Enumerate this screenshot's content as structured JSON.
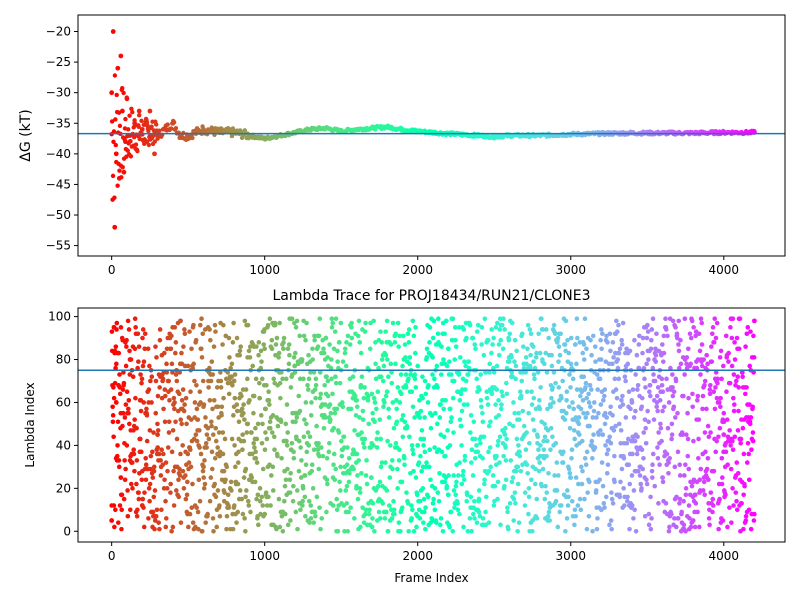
{
  "chart_data": [
    {
      "type": "scatter",
      "title": "",
      "xlabel": "",
      "ylabel": "ΔG (kT)",
      "xlim": [
        -220,
        4400
      ],
      "ylim": [
        -56.7,
        -17.3
      ],
      "x_ticks": [
        0,
        1000,
        2000,
        3000,
        4000
      ],
      "y_ticks": [
        -55,
        -50,
        -45,
        -40,
        -35,
        -30,
        -25,
        -20
      ],
      "hline": -36.7,
      "grid": false,
      "colormap": "rainbow (frame index)",
      "series": [
        {
          "x": [
            0,
            10,
            20,
            30,
            40,
            50,
            60,
            70,
            80,
            90,
            100,
            120,
            150,
            180,
            200,
            230,
            250,
            280,
            300,
            350,
            400,
            450,
            500,
            600,
            700,
            800,
            900,
            1000,
            1100,
            1200,
            1300,
            1400,
            1500,
            1600,
            1700,
            1800,
            1900,
            2000,
            2200,
            2400,
            2500,
            2600,
            2800,
            3000,
            3200,
            3400,
            3600,
            3800,
            4000,
            4200
          ],
          "y": [
            -30,
            -20,
            -52,
            -40,
            -26,
            -44,
            -24,
            -33,
            -43,
            -38,
            -31,
            -37,
            -35,
            -33,
            -36,
            -38,
            -33,
            -40,
            -37,
            -36,
            -35,
            -37,
            -37,
            -36,
            -36.5,
            -36.5,
            -37,
            -37.5,
            -37,
            -36.5,
            -36,
            -35.8,
            -36.3,
            -36,
            -35.8,
            -35.6,
            -36,
            -36.3,
            -36.7,
            -37,
            -37.2,
            -37,
            -37,
            -36.8,
            -36.7,
            -36.6,
            -36.6,
            -36.6,
            -36.5,
            -36.5
          ]
        }
      ]
    },
    {
      "type": "scatter",
      "title": "Lambda Trace for PROJ18434/RUN21/CLONE3",
      "xlabel": "Frame Index",
      "ylabel": "Lambda Index",
      "xlim": [
        -220,
        4400
      ],
      "ylim": [
        -5,
        104
      ],
      "x_ticks": [
        0,
        1000,
        2000,
        3000,
        4000
      ],
      "y_ticks": [
        0,
        20,
        40,
        60,
        80,
        100
      ],
      "hline": 75,
      "grid": false,
      "colormap": "rainbow (frame index)",
      "points_note": "approximately one point per frame, frame 0–4200, lambda index 0–99 distributed across full range",
      "sample_points": {
        "x": [
          0,
          15,
          30,
          60,
          120,
          200,
          300,
          450,
          600,
          800,
          1000,
          1200,
          1400,
          1600,
          1800,
          2000,
          2200,
          2400,
          2600,
          2800,
          3000,
          3200,
          3400,
          3600,
          3800,
          4000,
          4200
        ],
        "y": [
          5,
          95,
          60,
          25,
          80,
          12,
          45,
          98,
          30,
          70,
          8,
          55,
          90,
          20,
          65,
          40,
          85,
          15,
          50,
          35,
          75,
          10,
          60,
          25,
          5,
          45,
          98
        ]
      }
    }
  ]
}
